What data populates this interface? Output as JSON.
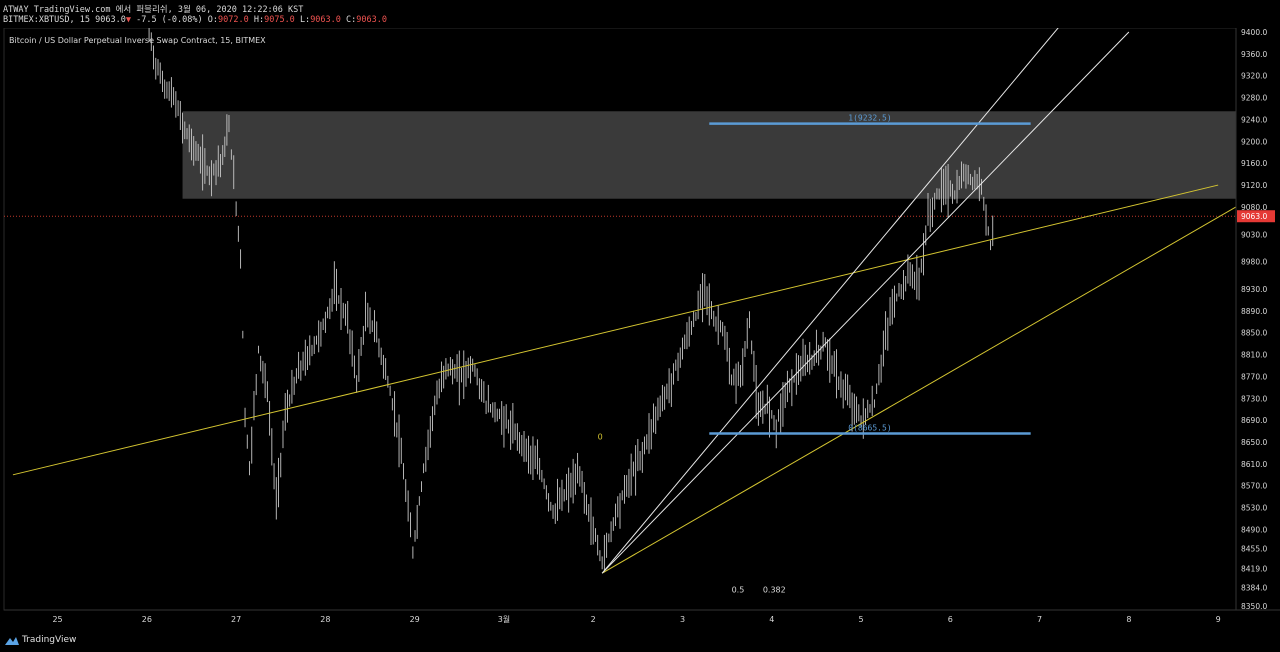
{
  "header": {
    "line1": "ATWAY TradingView.com 에서 퍼블리쉬, 3월 06, 2020 12:22:06 KST",
    "symbol": "BITMEX:XBTUSD, 15",
    "price": "9063.0",
    "down_arrow": "▼",
    "change": "-7.5 (-0.08%)",
    "o_label": "O:",
    "o_value": "9072.0",
    "h_label": "H:",
    "h_value": "9075.0",
    "l_label": "L:",
    "l_value": "9063.0",
    "c_label": "C:",
    "c_value": "9063.0"
  },
  "footer": {
    "brand": "TradingView",
    "logo_icon": "tradingview-logo-icon"
  },
  "colors": {
    "background": "#000000",
    "candle": "#c8c8c8",
    "trendline": "#d4c531",
    "fan_line": "#e8e8e8",
    "fib_level": "#5b9bd5",
    "supply_zone": "#404040",
    "price_label_bg": "#e53935",
    "price_line": "#c0392b"
  },
  "chart_data": {
    "type": "candlestick",
    "title": "Bitcoin / US Dollar Perpetual Inverse Swap Contract, 15, BITMEX",
    "y_ticks": [
      "9400.0",
      "9360.0",
      "9320.0",
      "9280.0",
      "9240.0",
      "9200.0",
      "9160.0",
      "9120.0",
      "9080.0",
      "9030.0",
      "8980.0",
      "8930.0",
      "8890.0",
      "8850.0",
      "8810.0",
      "8770.0",
      "8730.0",
      "8690.0",
      "8650.0",
      "8610.0",
      "8570.0",
      "8530.0",
      "8490.0",
      "8455.0",
      "8419.0",
      "8384.0",
      "8350.0"
    ],
    "ylim": [
      8350,
      9400
    ],
    "x_ticks": [
      {
        "label": "25",
        "day": 25
      },
      {
        "label": "26",
        "day": 26
      },
      {
        "label": "27",
        "day": 27
      },
      {
        "label": "28",
        "day": 28
      },
      {
        "label": "29",
        "day": 29
      },
      {
        "label": "3월",
        "day": 30
      },
      {
        "label": "2",
        "day": 31
      },
      {
        "label": "3",
        "day": 32
      },
      {
        "label": "4",
        "day": 33
      },
      {
        "label": "5",
        "day": 34
      },
      {
        "label": "6",
        "day": 35
      },
      {
        "label": "7",
        "day": 36
      },
      {
        "label": "8",
        "day": 37
      },
      {
        "label": "9",
        "day": 38
      }
    ],
    "last_price": 9063.0,
    "last_price_label": "9063.0",
    "price_path": [
      [
        26.0,
        9420
      ],
      [
        26.1,
        9340
      ],
      [
        26.2,
        9300
      ],
      [
        26.3,
        9280
      ],
      [
        26.4,
        9230
      ],
      [
        26.55,
        9180
      ],
      [
        26.7,
        9140
      ],
      [
        26.85,
        9170
      ],
      [
        26.92,
        9230
      ],
      [
        27.0,
        9080
      ],
      [
        27.05,
        8990
      ],
      [
        27.1,
        8700
      ],
      [
        27.15,
        8600
      ],
      [
        27.25,
        8820
      ],
      [
        27.35,
        8740
      ],
      [
        27.45,
        8540
      ],
      [
        27.55,
        8700
      ],
      [
        27.7,
        8780
      ],
      [
        27.85,
        8820
      ],
      [
        28.0,
        8870
      ],
      [
        28.1,
        8930
      ],
      [
        28.25,
        8870
      ],
      [
        28.35,
        8760
      ],
      [
        28.45,
        8880
      ],
      [
        28.55,
        8860
      ],
      [
        28.7,
        8760
      ],
      [
        28.8,
        8680
      ],
      [
        28.9,
        8560
      ],
      [
        28.98,
        8450
      ],
      [
        29.1,
        8600
      ],
      [
        29.2,
        8700
      ],
      [
        29.35,
        8790
      ],
      [
        29.5,
        8770
      ],
      [
        29.65,
        8790
      ],
      [
        29.8,
        8720
      ],
      [
        30.0,
        8690
      ],
      [
        30.2,
        8650
      ],
      [
        30.4,
        8600
      ],
      [
        30.55,
        8520
      ],
      [
        30.7,
        8560
      ],
      [
        30.85,
        8590
      ],
      [
        30.95,
        8520
      ],
      [
        31.1,
        8430
      ],
      [
        31.25,
        8520
      ],
      [
        31.4,
        8580
      ],
      [
        31.55,
        8630
      ],
      [
        31.7,
        8700
      ],
      [
        31.85,
        8750
      ],
      [
        32.0,
        8820
      ],
      [
        32.15,
        8880
      ],
      [
        32.25,
        8940
      ],
      [
        32.35,
        8870
      ],
      [
        32.45,
        8860
      ],
      [
        32.55,
        8760
      ],
      [
        32.65,
        8770
      ],
      [
        32.75,
        8870
      ],
      [
        32.85,
        8700
      ],
      [
        32.95,
        8720
      ],
      [
        33.05,
        8680
      ],
      [
        33.15,
        8740
      ],
      [
        33.3,
        8780
      ],
      [
        33.45,
        8800
      ],
      [
        33.6,
        8830
      ],
      [
        33.75,
        8760
      ],
      [
        33.9,
        8720
      ],
      [
        34.0,
        8690
      ],
      [
        34.15,
        8720
      ],
      [
        34.25,
        8820
      ],
      [
        34.35,
        8900
      ],
      [
        34.45,
        8930
      ],
      [
        34.55,
        8960
      ],
      [
        34.65,
        8940
      ],
      [
        34.75,
        9060
      ],
      [
        34.85,
        9100
      ],
      [
        34.95,
        9120
      ],
      [
        35.05,
        9100
      ],
      [
        35.15,
        9140
      ],
      [
        35.25,
        9130
      ],
      [
        35.35,
        9120
      ],
      [
        35.45,
        9010
      ],
      [
        35.5,
        9063
      ]
    ],
    "trendlines": [
      {
        "name": "upper-trendline",
        "p1": [
          24.5,
          8590
        ],
        "p2": [
          38.0,
          9120
        ]
      },
      {
        "name": "lower-trendline",
        "p1": [
          31.1,
          8410
        ],
        "p2": [
          38.2,
          9080
        ]
      }
    ],
    "fan_lines": [
      {
        "name": "fan-line-steep",
        "p1": [
          31.1,
          8410
        ],
        "p2": [
          36.4,
          9445
        ]
      },
      {
        "name": "fan-line-shallow",
        "p1": [
          31.1,
          8410
        ],
        "p2": [
          37.0,
          9400
        ]
      }
    ],
    "supply_zone": {
      "x1": 26.4,
      "x2": 38.5,
      "y1": 9095,
      "y2": 9255
    },
    "fib": {
      "x1": 32.3,
      "x2": 35.9,
      "levels": [
        {
          "label": "1(9232.5)",
          "value": 9232.5
        },
        {
          "label": "0(8665.5)",
          "value": 8665.5
        }
      ]
    },
    "annotations": [
      {
        "text": "0",
        "x": 31.05,
        "y": 8655,
        "color": "#d4c531"
      },
      {
        "text": "0.5",
        "x": 32.55,
        "y": 8375,
        "color": "#d9d9d9"
      },
      {
        "text": "0.382",
        "x": 32.9,
        "y": 8375,
        "color": "#d9d9d9"
      }
    ],
    "xlim": [
      24.4,
      38.2
    ]
  }
}
